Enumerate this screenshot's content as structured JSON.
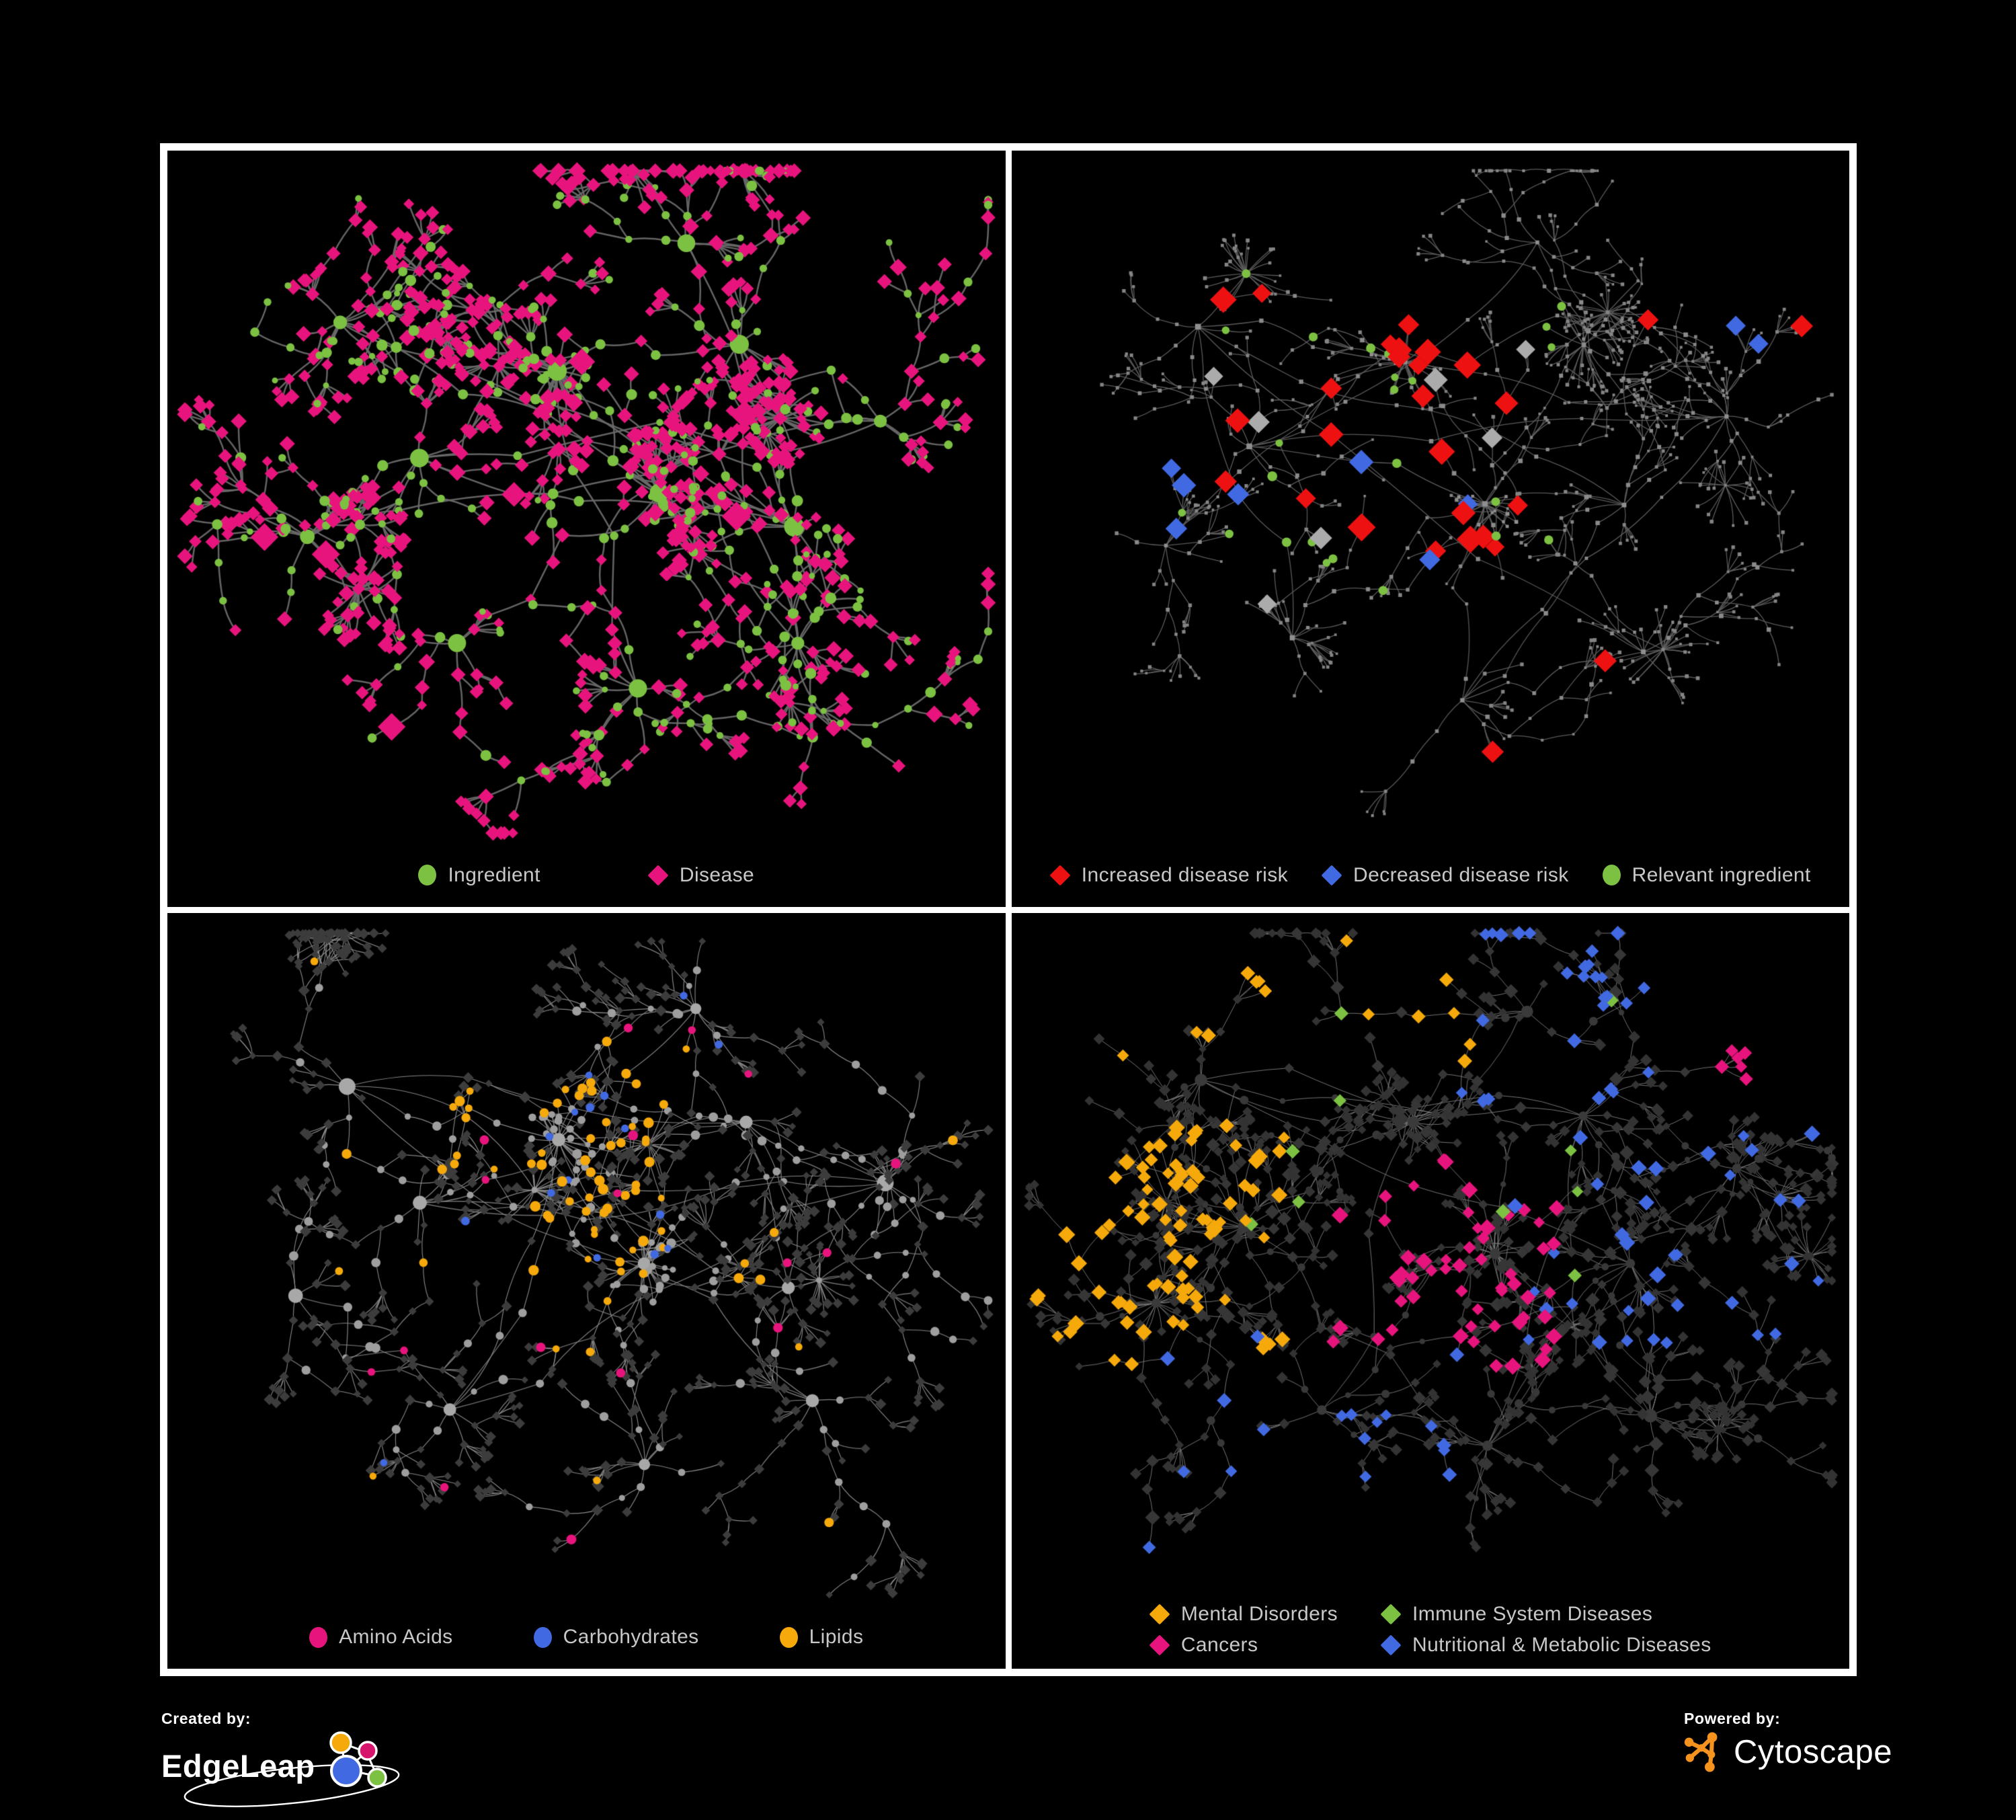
{
  "figure": {
    "background": "#000000",
    "panel_border_color": "#FFFFFF",
    "legend_text_color": "#C8C8C8"
  },
  "panels": [
    {
      "id": "ingredient-disease",
      "legend": [
        {
          "label": "Ingredient",
          "shape": "circle",
          "color": "#7CC142"
        },
        {
          "label": "Disease",
          "shape": "diamond",
          "color": "#E8147D"
        }
      ]
    },
    {
      "id": "disease-risk",
      "legend": [
        {
          "label": "Increased disease risk",
          "shape": "diamond",
          "color": "#EE1111"
        },
        {
          "label": "Decreased disease risk",
          "shape": "diamond",
          "color": "#4169E1"
        },
        {
          "label": "Relevant ingredient",
          "shape": "circle",
          "color": "#7CC142"
        }
      ]
    },
    {
      "id": "compound-classes",
      "legend": [
        {
          "label": "Amino Acids",
          "shape": "circle",
          "color": "#E8147D"
        },
        {
          "label": "Carbohydrates",
          "shape": "circle",
          "color": "#4169E1"
        },
        {
          "label": "Lipids",
          "shape": "circle",
          "color": "#F5A90B"
        }
      ]
    },
    {
      "id": "disease-categories",
      "legend": [
        {
          "label": "Mental Disorders",
          "shape": "diamond",
          "color": "#F5A90B"
        },
        {
          "label": "Immune System Diseases",
          "shape": "diamond",
          "color": "#7CC142"
        },
        {
          "label": "Cancers",
          "shape": "diamond",
          "color": "#E8147D"
        },
        {
          "label": "Nutritional & Metabolic Diseases",
          "shape": "diamond",
          "color": "#4169E1"
        }
      ]
    }
  ],
  "chart_data": [
    {
      "id": "ingredient-disease",
      "type": "network",
      "seed": 11,
      "edge": {
        "color": "#696969",
        "width": 2.5
      },
      "base": {
        "hub": [
          "circle",
          "#7CC142",
          12
        ],
        "core": [
          "circle",
          "#7CC142",
          6
        ],
        "mid": [
          "circle",
          "#7CC142",
          6.5
        ],
        "leaf": [
          "diamond",
          "#E8147D",
          6.5
        ]
      },
      "mix": [
        {
          "from": "mid",
          "to": [
            "diamond",
            "#E8147D",
            7
          ],
          "prob": 0.42
        },
        {
          "from": "leaf",
          "to": [
            "circle",
            "#7CC142",
            5.5
          ],
          "prob": 0.17
        },
        {
          "from": "core",
          "to": [
            "diamond",
            "#E8147D",
            8
          ],
          "prob": 0.3
        }
      ],
      "highlights": [
        {
          "shape": "diamond",
          "color": "#E8147D",
          "size": [
            13,
            17
          ],
          "count": 7,
          "region": [
            0.05,
            0.05,
            0.95,
            0.9
          ],
          "kinds": [
            "mid",
            "core"
          ]
        }
      ]
    },
    {
      "id": "disease-risk",
      "type": "network",
      "seed": 22,
      "edge": {
        "color": "#5E5E5E",
        "width": 1.3
      },
      "base": {
        "hub": [
          "square",
          "#8F8F8F",
          3.4
        ],
        "core": [
          "square",
          "#8F8F8F",
          2.4
        ],
        "mid": [
          "square",
          "#8A8A8A",
          2.6
        ],
        "leaf": [
          "square",
          "#848484",
          2.2
        ]
      },
      "mix": [],
      "highlights": [
        {
          "shape": "diamond",
          "color": "#EE1111",
          "size": [
            10,
            15
          ],
          "count": 24,
          "region": [
            0.2,
            0.18,
            0.62,
            0.6
          ],
          "kinds": [
            "mid",
            "core",
            "hub"
          ]
        },
        {
          "shape": "diamond",
          "color": "#EE1111",
          "size": [
            10,
            13
          ],
          "count": 2,
          "region": [
            0.52,
            0.66,
            0.72,
            0.84
          ],
          "kinds": [
            "mid",
            "leaf"
          ]
        },
        {
          "shape": "diamond",
          "color": "#EE1111",
          "size": [
            10,
            12
          ],
          "count": 2,
          "region": [
            0.75,
            0.1,
            0.97,
            0.3
          ],
          "kinds": [
            "mid",
            "leaf"
          ]
        },
        {
          "shape": "diamond",
          "color": "#4169E1",
          "size": [
            10,
            13
          ],
          "count": 4,
          "region": [
            0.12,
            0.3,
            0.3,
            0.52
          ],
          "kinds": [
            "mid",
            "core",
            "leaf"
          ]
        },
        {
          "shape": "diamond",
          "color": "#4169E1",
          "size": [
            10,
            13
          ],
          "count": 3,
          "region": [
            0.35,
            0.35,
            0.55,
            0.55
          ],
          "kinds": [
            "mid",
            "core"
          ]
        },
        {
          "shape": "diamond",
          "color": "#4169E1",
          "size": [
            9,
            11
          ],
          "count": 2,
          "region": [
            0.82,
            0.1,
            0.98,
            0.26
          ],
          "kinds": [
            "mid",
            "leaf"
          ]
        },
        {
          "shape": "diamond",
          "color": "#ABABAB",
          "size": [
            10,
            14
          ],
          "count": 7,
          "region": [
            0.18,
            0.2,
            0.65,
            0.62
          ],
          "kinds": [
            "mid",
            "core",
            "leaf"
          ]
        },
        {
          "shape": "circle",
          "color": "#7CC142",
          "size": [
            5.5,
            7.5
          ],
          "count": 24,
          "region": [
            0.16,
            0.16,
            0.66,
            0.6
          ],
          "kinds": [
            "mid",
            "core",
            "leaf"
          ]
        }
      ]
    },
    {
      "id": "compound-classes",
      "type": "network",
      "seed": 33,
      "edge": {
        "color": "#8C8C8C",
        "width": 1.15
      },
      "base": {
        "hub": [
          "circle",
          "#A8A8A8",
          10
        ],
        "core": [
          "circle",
          "#9E9E9E",
          5
        ],
        "mid": [
          "circle",
          "#9E9E9E",
          5.5
        ],
        "leaf": [
          "diamond",
          "#3C3C3C",
          4.6
        ]
      },
      "mix": [
        {
          "from": "mid",
          "to": [
            "diamond",
            "#3C3C3C",
            4.8
          ],
          "prob": 0.35
        }
      ],
      "highlights": [
        {
          "shape": "circle",
          "color": "#F5A90B",
          "size": [
            5,
            8
          ],
          "count": 55,
          "region": [
            0.28,
            0.16,
            0.62,
            0.48
          ],
          "kinds": [
            "mid",
            "core",
            "leaf"
          ]
        },
        {
          "shape": "circle",
          "color": "#F5A90B",
          "size": [
            5,
            7.5
          ],
          "count": 22,
          "region": [
            0.05,
            0.03,
            0.95,
            0.92
          ],
          "kinds": [
            "mid",
            "leaf"
          ]
        },
        {
          "shape": "circle",
          "color": "#4169E1",
          "size": [
            5,
            6.5
          ],
          "count": 13,
          "region": [
            0.28,
            0.2,
            0.6,
            0.46
          ],
          "kinds": [
            "mid",
            "core",
            "leaf"
          ]
        },
        {
          "shape": "circle",
          "color": "#4169E1",
          "size": [
            5,
            6
          ],
          "count": 3,
          "region": [
            0.0,
            0.1,
            1,
            0.95
          ],
          "kinds": [
            "leaf"
          ]
        },
        {
          "shape": "circle",
          "color": "#E8147D",
          "size": [
            5.5,
            7.5
          ],
          "count": 17,
          "region": [
            0.02,
            0.02,
            0.98,
            0.97
          ],
          "kinds": [
            "mid",
            "leaf",
            "core"
          ]
        }
      ]
    },
    {
      "id": "disease-categories",
      "type": "network",
      "seed": 44,
      "edge": {
        "color": "#787878",
        "width": 1.0
      },
      "base": {
        "hub": [
          "circle",
          "#3A3A3A",
          8
        ],
        "core": [
          "diamond",
          "#363636",
          5.5
        ],
        "mid": [
          "diamond",
          "#363636",
          6
        ],
        "leaf": [
          "diamond",
          "#333333",
          5
        ]
      },
      "mix": [
        {
          "from": "mid",
          "to": [
            "circle",
            "#383838",
            5
          ],
          "prob": 0.3
        }
      ],
      "highlights": [
        {
          "shape": "diamond",
          "color": "#F5A90B",
          "size": [
            6,
            9
          ],
          "count": 85,
          "region": [
            0.03,
            0.28,
            0.33,
            0.62
          ],
          "kinds": [
            "leaf",
            "mid",
            "core"
          ]
        },
        {
          "shape": "diamond",
          "color": "#F5A90B",
          "size": [
            6,
            8
          ],
          "count": 14,
          "region": [
            0.08,
            0.03,
            0.55,
            0.2
          ],
          "kinds": [
            "leaf",
            "mid"
          ]
        },
        {
          "shape": "diamond",
          "color": "#E8147D",
          "size": [
            6,
            9
          ],
          "count": 55,
          "region": [
            0.38,
            0.32,
            0.66,
            0.6
          ],
          "kinds": [
            "leaf",
            "mid",
            "core"
          ]
        },
        {
          "shape": "diamond",
          "color": "#E8147D",
          "size": [
            6,
            8
          ],
          "count": 8,
          "region": [
            0.82,
            0.1,
            0.99,
            0.26
          ],
          "kinds": [
            "leaf",
            "mid"
          ]
        },
        {
          "shape": "diamond",
          "color": "#4169E1",
          "size": [
            6,
            9
          ],
          "count": 35,
          "region": [
            0.58,
            0.28,
            0.97,
            0.58
          ],
          "kinds": [
            "leaf",
            "mid",
            "core"
          ]
        },
        {
          "shape": "diamond",
          "color": "#4169E1",
          "size": [
            6,
            8
          ],
          "count": 28,
          "region": [
            0.5,
            0.02,
            0.97,
            0.25
          ],
          "kinds": [
            "leaf",
            "mid"
          ]
        },
        {
          "shape": "diamond",
          "color": "#4169E1",
          "size": [
            6,
            8
          ],
          "count": 18,
          "region": [
            0.08,
            0.55,
            0.55,
            0.92
          ],
          "kinds": [
            "leaf",
            "mid"
          ]
        },
        {
          "shape": "diamond",
          "color": "#7CC142",
          "size": [
            6,
            8
          ],
          "count": 10,
          "region": [
            0.28,
            0.08,
            0.72,
            0.5
          ],
          "kinds": [
            "leaf",
            "mid"
          ]
        }
      ]
    }
  ],
  "footer": {
    "created_by_label": "Created by:",
    "created_by_brand": "EdgeLeap",
    "powered_by_label": "Powered by:",
    "powered_by_brand": "Cytoscape",
    "edgeleap_logo_colors": {
      "orange": "#F5A90B",
      "magenta": "#D6156C",
      "blue": "#4169E1",
      "green": "#7CC142"
    },
    "cytoscape_logo_color": "#F6921E"
  }
}
